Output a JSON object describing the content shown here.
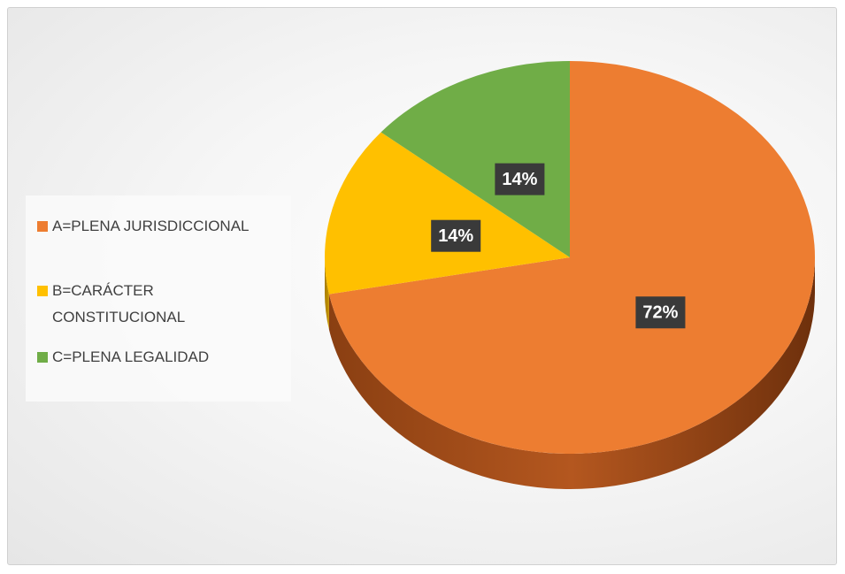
{
  "chart_data": {
    "type": "pie",
    "categories": [
      "A=PLENA JURISDICCIONAL",
      "B=CARÁCTER CONSTITUCIONAL",
      "C=PLENA LEGALIDAD"
    ],
    "values": [
      72,
      14,
      14
    ],
    "value_labels": [
      "72%",
      "14%",
      "14%"
    ],
    "colors": [
      "#ED7D31",
      "#FFC000",
      "#70AD47"
    ],
    "legend": "left"
  }
}
